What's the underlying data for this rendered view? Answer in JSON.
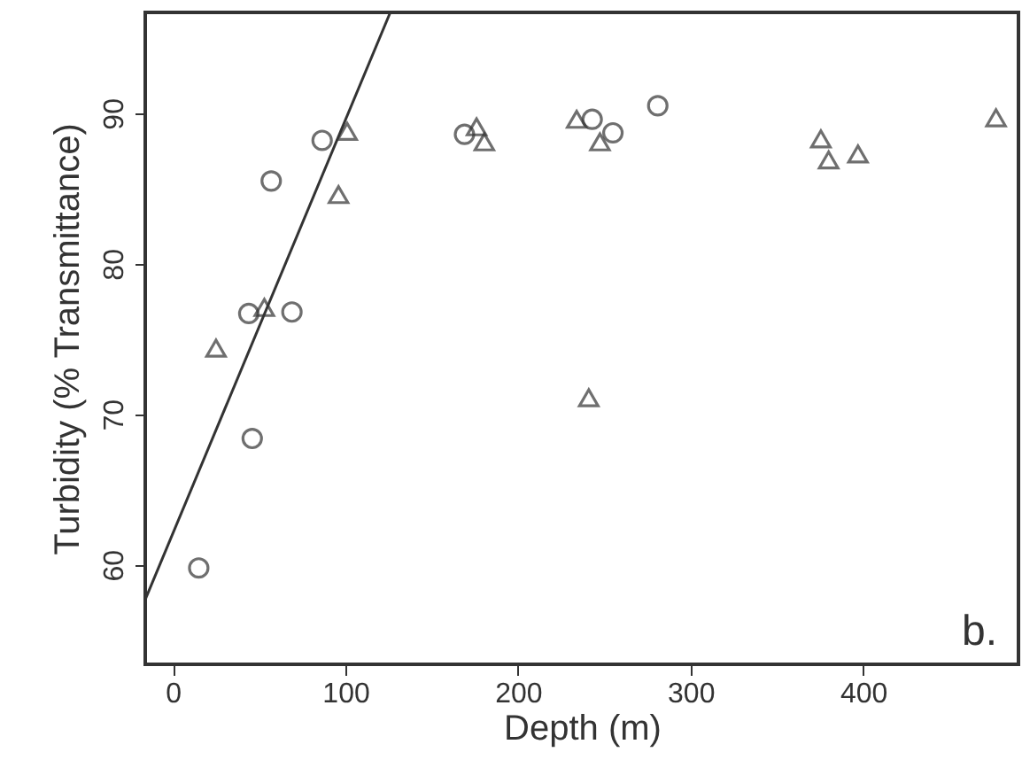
{
  "chart_data": {
    "type": "scatter",
    "xlabel": "Depth (m)",
    "ylabel": "Turbidity (% Transmittance)",
    "xlim": [
      -16,
      490
    ],
    "ylim": [
      53.4,
      96.7
    ],
    "xticks": [
      0,
      100,
      200,
      300,
      400
    ],
    "yticks": [
      60,
      70,
      80,
      90
    ],
    "grid": false,
    "annotations": [
      "b."
    ],
    "series": [
      {
        "marker": "circle",
        "color": "#333333",
        "x": [
          15,
          46,
          44,
          69,
          57,
          86.5,
          169,
          243,
          255,
          281
        ],
        "values": [
          59.8,
          68.4,
          76.7,
          76.8,
          85.5,
          88.2,
          88.6,
          89.6,
          88.7,
          90.5
        ]
      },
      {
        "marker": "triangle",
        "color": "#333333",
        "x": [
          25,
          53,
          96,
          101,
          176,
          180.5,
          234,
          247.5,
          241,
          375.5,
          380,
          397,
          477
        ],
        "values": [
          74.4,
          77.1,
          84.6,
          88.8,
          89.1,
          88.1,
          89.6,
          88.1,
          71.1,
          88.3,
          86.9,
          87.3,
          89.7
        ]
      },
      {
        "type": "line",
        "color": "#333333",
        "x": [
          -16,
          126
        ],
        "values": [
          57.7,
          96.7
        ]
      }
    ]
  }
}
